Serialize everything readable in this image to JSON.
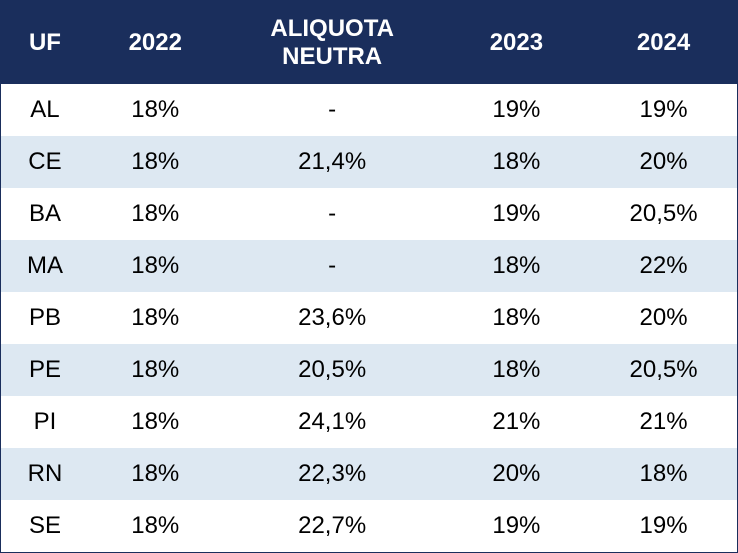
{
  "table": {
    "header_bg": "#1a2e5c",
    "header_color": "#ffffff",
    "alt_row_bg": "#dde8f2",
    "row_bg": "#ffffff",
    "text_color": "#000000",
    "font_size_header": 24,
    "font_size_cell": 24,
    "columns": [
      {
        "key": "uf",
        "label": "UF"
      },
      {
        "key": "y2022",
        "label": "2022"
      },
      {
        "key": "neutra",
        "label": "ALIQUOTA\nNEUTRA"
      },
      {
        "key": "y2023",
        "label": "2023"
      },
      {
        "key": "y2024",
        "label": "2024"
      }
    ],
    "rows": [
      {
        "uf": "AL",
        "y2022": "18%",
        "neutra": "-",
        "y2023": "19%",
        "y2024": "19%"
      },
      {
        "uf": "CE",
        "y2022": "18%",
        "neutra": "21,4%",
        "y2023": "18%",
        "y2024": "20%"
      },
      {
        "uf": "BA",
        "y2022": "18%",
        "neutra": "-",
        "y2023": "19%",
        "y2024": "20,5%"
      },
      {
        "uf": "MA",
        "y2022": "18%",
        "neutra": "-",
        "y2023": "18%",
        "y2024": "22%"
      },
      {
        "uf": "PB",
        "y2022": "18%",
        "neutra": "23,6%",
        "y2023": "18%",
        "y2024": "20%"
      },
      {
        "uf": "PE",
        "y2022": "18%",
        "neutra": "20,5%",
        "y2023": "18%",
        "y2024": "20,5%"
      },
      {
        "uf": "PI",
        "y2022": "18%",
        "neutra": "24,1%",
        "y2023": "21%",
        "y2024": "21%"
      },
      {
        "uf": "RN",
        "y2022": "18%",
        "neutra": "22,3%",
        "y2023": "20%",
        "y2024": "18%"
      },
      {
        "uf": "SE",
        "y2022": "18%",
        "neutra": "22,7%",
        "y2023": "19%",
        "y2024": "19%"
      }
    ]
  }
}
